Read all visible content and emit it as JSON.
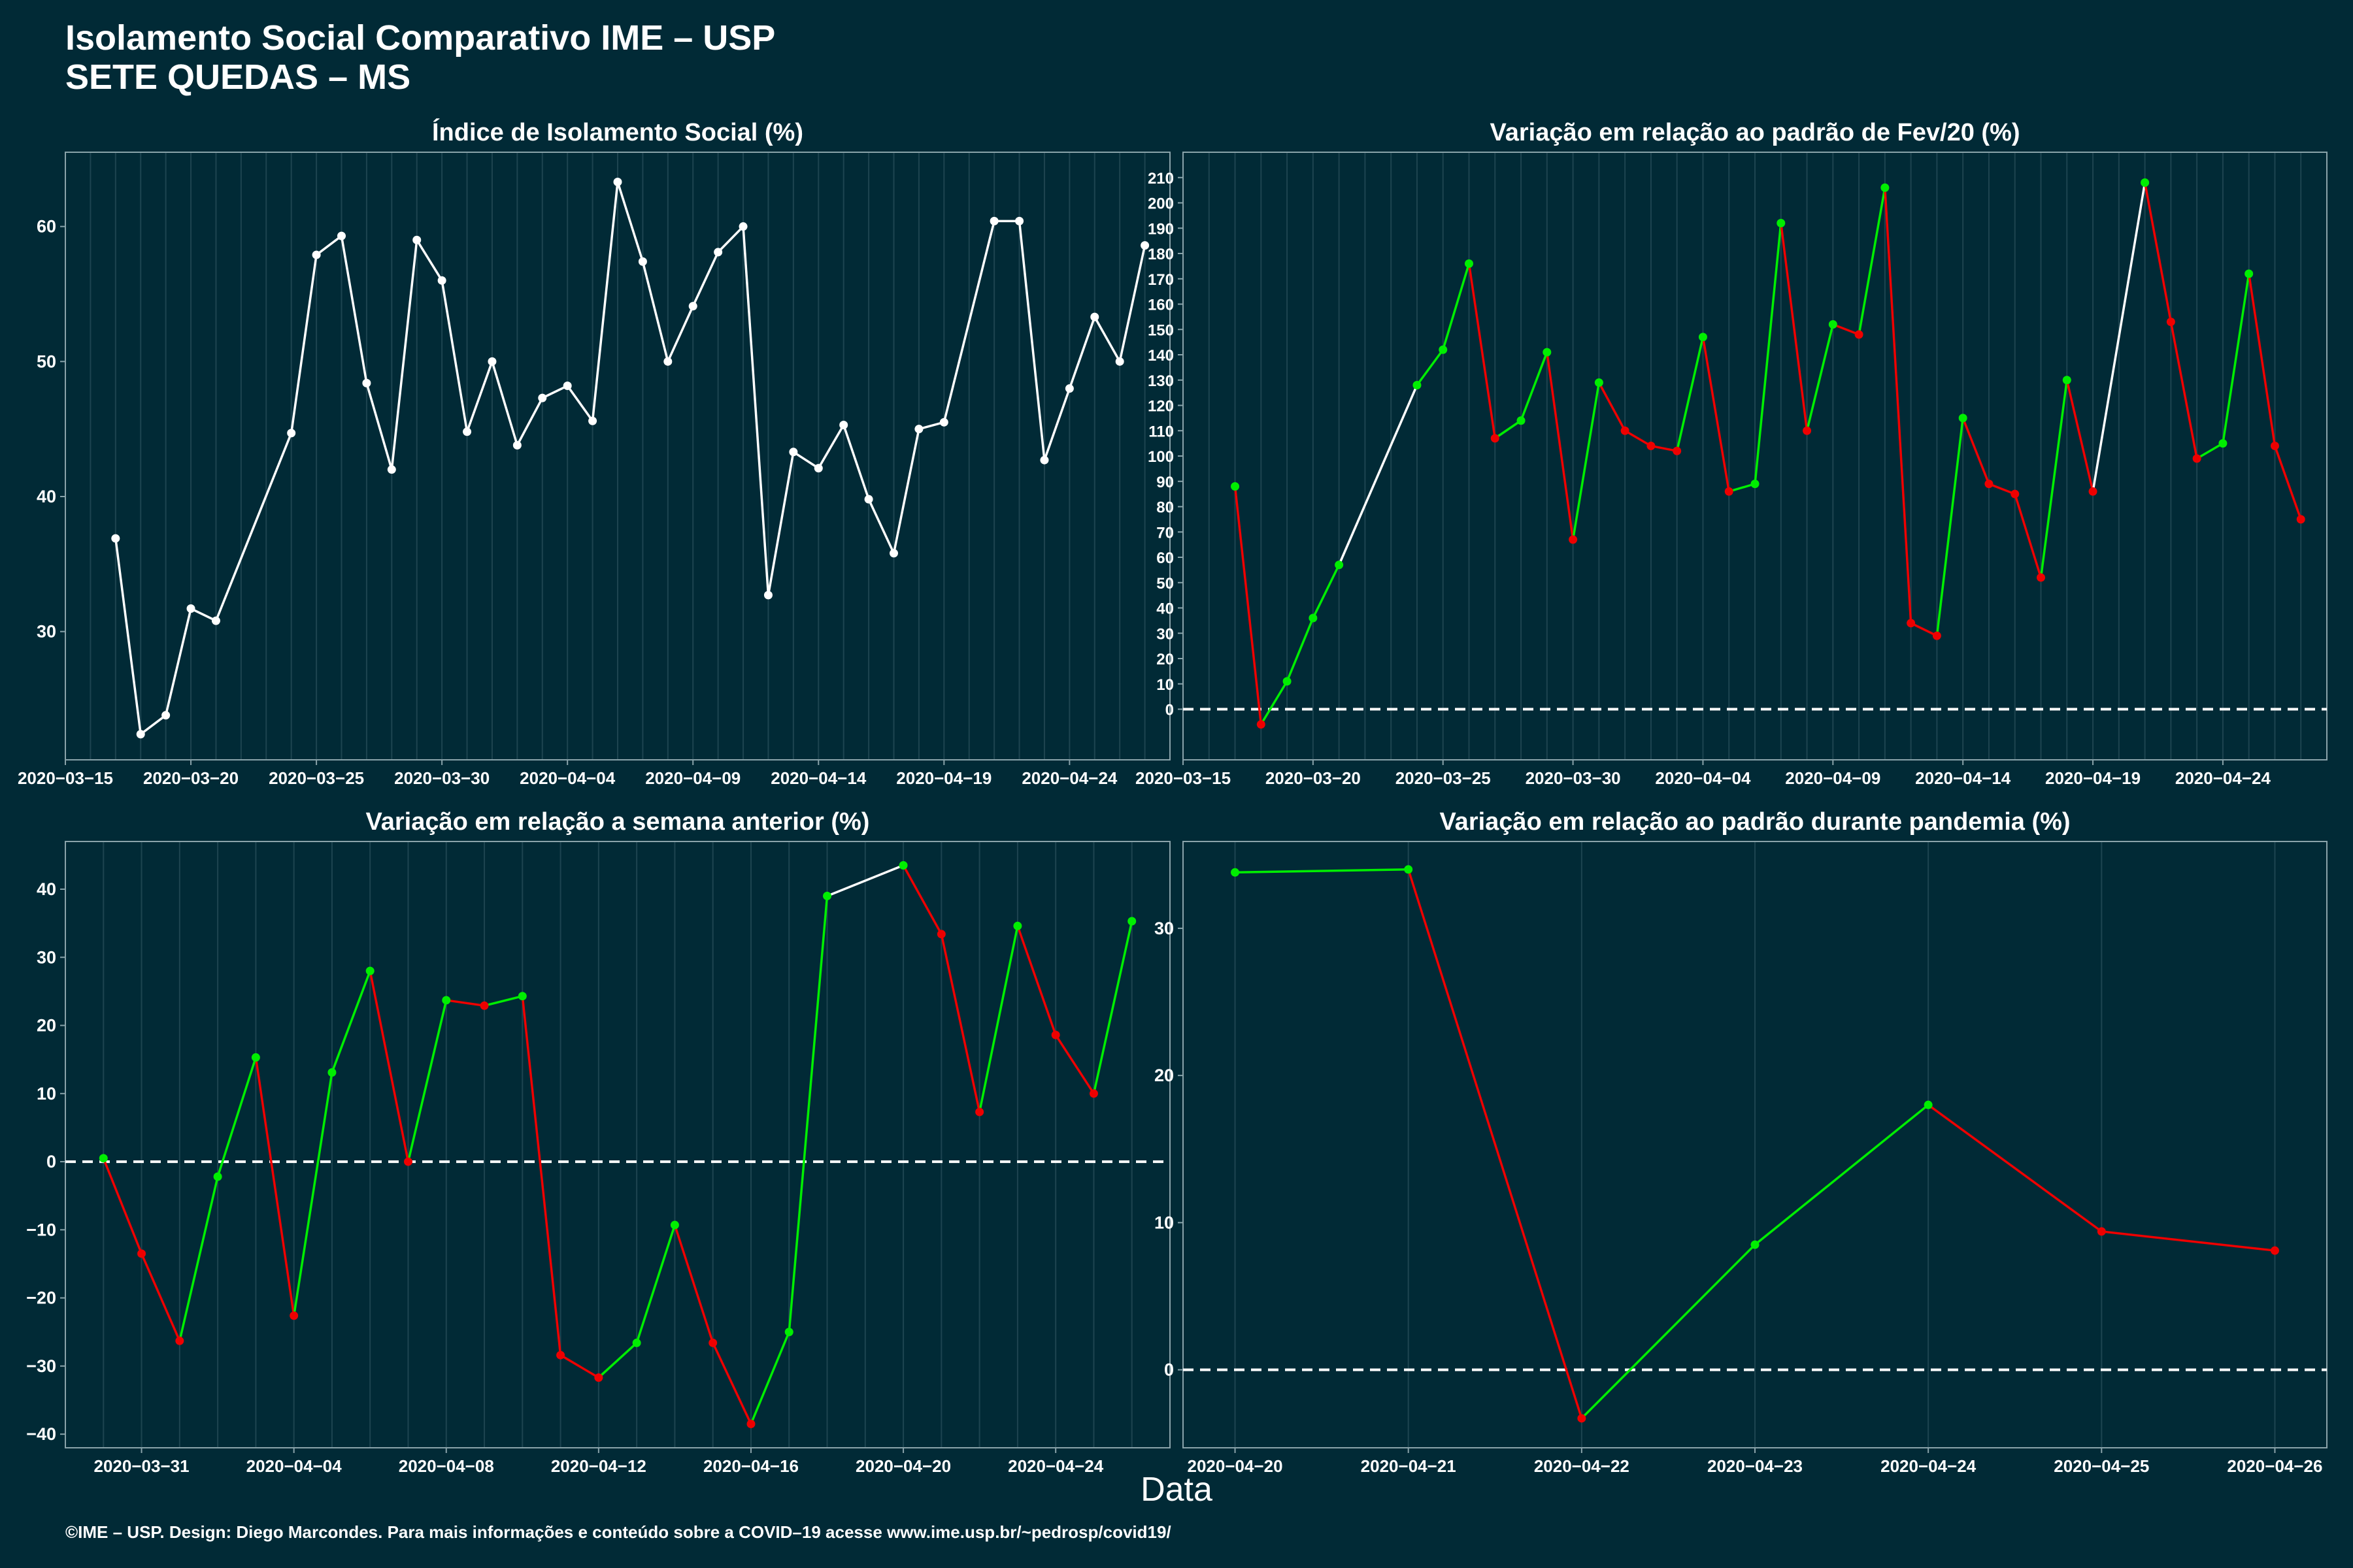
{
  "title": {
    "line1": "Isolamento Social Comparativo IME – USP",
    "line2": "SETE QUEDAS – MS"
  },
  "xaxis_label": "Data",
  "footer": "©IME – USP. Design: Diego Marcondes. Para mais informações e conteúdo sobre a COVID–19 acesse www.ime.usp.br/~pedrosp/covid19/",
  "colors": {
    "background": "#012a36",
    "white": "#ffffff",
    "green": "#00ee00",
    "red": "#ee0000",
    "grid": "#1d4450"
  },
  "chart_data": [
    {
      "type": "line",
      "title": "Índice de Isolamento Social (%)",
      "xlabel": "Data",
      "x_start": "2020-03-17",
      "x": [
        "2020-03-17",
        "2020-03-18",
        "2020-03-19",
        "2020-03-20",
        "2020-03-21",
        "2020-03-24",
        "2020-03-25",
        "2020-03-26",
        "2020-03-27",
        "2020-03-28",
        "2020-03-29",
        "2020-03-30",
        "2020-03-31",
        "2020-04-01",
        "2020-04-02",
        "2020-04-03",
        "2020-04-04",
        "2020-04-05",
        "2020-04-06",
        "2020-04-07",
        "2020-04-08",
        "2020-04-09",
        "2020-04-10",
        "2020-04-11",
        "2020-04-12",
        "2020-04-13",
        "2020-04-14",
        "2020-04-15",
        "2020-04-16",
        "2020-04-17",
        "2020-04-18",
        "2020-04-19",
        "2020-04-21",
        "2020-04-22",
        "2020-04-23",
        "2020-04-24",
        "2020-04-25",
        "2020-04-26",
        "2020-04-27"
      ],
      "values": [
        36.9,
        22.4,
        23.8,
        31.7,
        30.8,
        44.7,
        57.9,
        59.3,
        48.4,
        42.0,
        59.0,
        56.0,
        44.8,
        50.0,
        43.8,
        47.3,
        48.2,
        45.6,
        63.3,
        57.4,
        50.0,
        54.1,
        58.1,
        60.0,
        32.7,
        43.3,
        42.1,
        45.3,
        39.8,
        35.8,
        45.0,
        45.5,
        60.4,
        60.4,
        42.7,
        48.0,
        53.3,
        50.0,
        58.6
      ],
      "xlim": [
        "2020-03-15",
        "2020-04-28"
      ],
      "ylim": [
        20.5,
        65.5
      ],
      "yticks": [
        30,
        40,
        50,
        60
      ],
      "xticks": [
        "2020-03-15",
        "2020-03-20",
        "2020-03-25",
        "2020-03-30",
        "2020-04-04",
        "2020-04-09",
        "2020-04-14",
        "2020-04-19",
        "2020-04-24"
      ],
      "zero_line": false
    },
    {
      "type": "line",
      "title": "Variação em relação ao padrão de Fev/20 (%)",
      "xlabel": "Data",
      "x": [
        "2020-03-17",
        "2020-03-18",
        "2020-03-19",
        "2020-03-20",
        "2020-03-21",
        "2020-03-24",
        "2020-03-25",
        "2020-03-26",
        "2020-03-27",
        "2020-03-28",
        "2020-03-29",
        "2020-03-30",
        "2020-03-31",
        "2020-04-01",
        "2020-04-02",
        "2020-04-03",
        "2020-04-04",
        "2020-04-05",
        "2020-04-06",
        "2020-04-07",
        "2020-04-08",
        "2020-04-09",
        "2020-04-10",
        "2020-04-11",
        "2020-04-12",
        "2020-04-13",
        "2020-04-14",
        "2020-04-15",
        "2020-04-16",
        "2020-04-17",
        "2020-04-18",
        "2020-04-19",
        "2020-04-21",
        "2020-04-22",
        "2020-04-23",
        "2020-04-24",
        "2020-04-25",
        "2020-04-26",
        "2020-04-27"
      ],
      "values": [
        88,
        -6,
        11,
        36,
        57,
        128,
        142,
        176,
        107,
        114,
        141,
        67,
        129,
        110,
        104,
        102,
        147,
        86,
        89,
        192,
        110,
        152,
        148,
        206,
        34,
        29,
        115,
        89,
        85,
        52,
        130,
        86,
        208,
        153,
        99,
        105,
        172,
        104,
        75
      ],
      "xlim": [
        "2020-03-15",
        "2020-04-28"
      ],
      "ylim": [
        -20,
        220
      ],
      "yticks": [
        0,
        10,
        20,
        30,
        40,
        50,
        60,
        70,
        80,
        90,
        100,
        110,
        120,
        130,
        140,
        150,
        160,
        170,
        180,
        190,
        200,
        210
      ],
      "xticks": [
        "2020-03-15",
        "2020-03-20",
        "2020-03-25",
        "2020-03-30",
        "2020-04-04",
        "2020-04-09",
        "2020-04-14",
        "2020-04-19",
        "2020-04-24"
      ],
      "zero_line": true
    },
    {
      "type": "line",
      "title": "Variação em relação a semana anterior (%)",
      "xlabel": "Data",
      "x": [
        "2020-03-30",
        "2020-03-31",
        "2020-04-01",
        "2020-04-02",
        "2020-04-03",
        "2020-04-04",
        "2020-04-05",
        "2020-04-06",
        "2020-04-07",
        "2020-04-08",
        "2020-04-09",
        "2020-04-10",
        "2020-04-11",
        "2020-04-12",
        "2020-04-13",
        "2020-04-14",
        "2020-04-15",
        "2020-04-16",
        "2020-04-17",
        "2020-04-18",
        "2020-04-20",
        "2020-04-21",
        "2020-04-22",
        "2020-04-23",
        "2020-04-24",
        "2020-04-25",
        "2020-04-26"
      ],
      "values": [
        0.5,
        -13.5,
        -26.3,
        -2.2,
        15.3,
        -22.6,
        13.1,
        28.0,
        0.0,
        23.7,
        22.9,
        24.3,
        -28.4,
        -31.7,
        -26.6,
        -9.3,
        -26.6,
        -38.5,
        -25.0,
        39.0,
        43.5,
        33.4,
        7.3,
        34.6,
        18.6,
        10.0,
        35.3
      ],
      "xlim": [
        "2020-03-29",
        "2020-04-27"
      ],
      "ylim": [
        -42,
        47
      ],
      "yticks": [
        -40,
        -30,
        -20,
        -10,
        0,
        10,
        20,
        30,
        40
      ],
      "xticks": [
        "2020-03-31",
        "2020-04-04",
        "2020-04-08",
        "2020-04-12",
        "2020-04-16",
        "2020-04-20",
        "2020-04-24"
      ],
      "zero_line": true
    },
    {
      "type": "line",
      "title": "Variação em relação ao padrão durante pandemia (%)",
      "xlabel": "Data",
      "x": [
        "2020-04-20",
        "2020-04-21",
        "2020-04-22",
        "2020-04-23",
        "2020-04-24",
        "2020-04-25",
        "2020-04-26"
      ],
      "values": [
        33.8,
        34.0,
        -3.3,
        8.5,
        18.0,
        9.4,
        8.1
      ],
      "xlim": [
        "2020-04-19.7",
        "2020-04-26.3"
      ],
      "ylim": [
        -5.3,
        35.9
      ],
      "yticks": [
        0,
        10,
        20,
        30
      ],
      "xticks": [
        "2020-04-20",
        "2020-04-21",
        "2020-04-22",
        "2020-04-23",
        "2020-04-24",
        "2020-04-25",
        "2020-04-26"
      ],
      "zero_line": true
    }
  ]
}
